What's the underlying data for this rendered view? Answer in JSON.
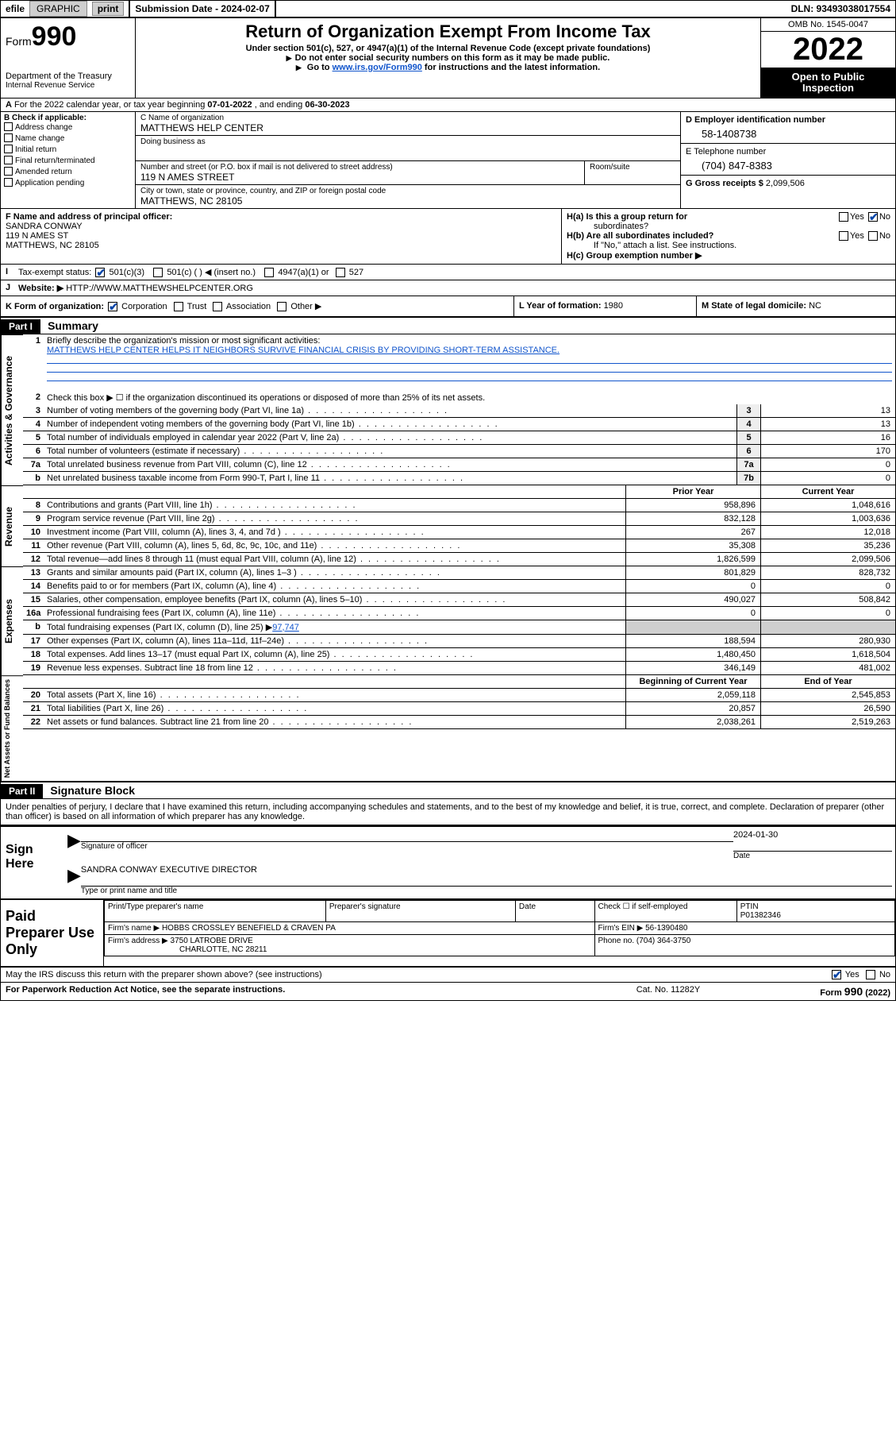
{
  "topbar": {
    "efile_label": "efile",
    "graphic_label": "GRAPHIC",
    "print_label": "print",
    "submission_label": "Submission Date - 2024-02-07",
    "dln_label": "DLN: 93493038017554"
  },
  "header": {
    "form_prefix": "Form",
    "form_number": "990",
    "title": "Return of Organization Exempt From Income Tax",
    "subtitle1": "Under section 501(c), 527, or 4947(a)(1) of the Internal Revenue Code (except private foundations)",
    "subtitle2": "Do not enter social security numbers on this form as it may be made public.",
    "subtitle3_pre": "Go to ",
    "subtitle3_link": "www.irs.gov/Form990",
    "subtitle3_post": " for instructions and the latest information.",
    "dept": "Department of the Treasury",
    "irs": "Internal Revenue Service",
    "omb": "OMB No. 1545-0047",
    "year": "2022",
    "inspection1": "Open to Public",
    "inspection2": "Inspection"
  },
  "rowA": {
    "label": "A",
    "text_a": "For the 2022 calendar year, or tax year beginning ",
    "begin": "07-01-2022",
    "text_b": " , and ending ",
    "end": "06-30-2023"
  },
  "B": {
    "label": "B Check if applicable:",
    "items": [
      "Address change",
      "Name change",
      "Initial return",
      "Final return/terminated",
      "Amended return",
      "Application pending"
    ]
  },
  "C": {
    "name_lbl": "C Name of organization",
    "name": "MATTHEWS HELP CENTER",
    "dba_lbl": "Doing business as",
    "addr_lbl": "Number and street (or P.O. box if mail is not delivered to street address)",
    "room_lbl": "Room/suite",
    "addr": "119 N AMES STREET",
    "city_lbl": "City or town, state or province, country, and ZIP or foreign postal code",
    "city": "MATTHEWS, NC  28105"
  },
  "D": {
    "ein_lbl": "D Employer identification number",
    "ein": "58-1408738",
    "phone_lbl": "E Telephone number",
    "phone": "(704) 847-8383",
    "gross_lbl": "G Gross receipts $ ",
    "gross": "2,099,506"
  },
  "F": {
    "lbl": "F Name and address of principal officer:",
    "name": "SANDRA CONWAY",
    "addr1": "119 N AMES ST",
    "addr2": "MATTHEWS, NC  28105"
  },
  "H": {
    "a_lbl": "H(a)  Is this a group return for",
    "a_sub": "subordinates?",
    "b_lbl": "H(b)  Are all subordinates included?",
    "b_note": "If \"No,\" attach a list. See instructions.",
    "c_lbl": "H(c)  Group exemption number ▶",
    "yes": "Yes",
    "no": "No"
  },
  "I": {
    "lbl": "Tax-exempt status:",
    "opt1": "501(c)(3)",
    "opt2": "501(c) (  ) ◀ (insert no.)",
    "opt3": "4947(a)(1) or",
    "opt4": "527"
  },
  "J": {
    "lbl": "Website: ▶",
    "url": "HTTP://WWW.MATTHEWSHELPCENTER.ORG"
  },
  "K": {
    "lbl": "K Form of organization:",
    "opts": [
      "Corporation",
      "Trust",
      "Association",
      "Other ▶"
    ]
  },
  "L": {
    "lbl": "L Year of formation: ",
    "val": "1980"
  },
  "M": {
    "lbl": "M State of legal domicile: ",
    "val": "NC"
  },
  "part1": {
    "hdr": "Part I",
    "title": "Summary",
    "q1_lbl": "Briefly describe the organization's mission or most significant activities:",
    "q1_text": "MATTHEWS HELP CENTER HELPS IT NEIGHBORS SURVIVE FINANCIAL CRISIS BY PROVIDING SHORT-TERM ASSISTANCE.",
    "q2": "Check this box ▶ ☐  if the organization discontinued its operations or disposed of more than 25% of its net assets.",
    "rows_single": [
      {
        "n": "3",
        "d": "Number of voting members of the governing body (Part VI, line 1a)",
        "c": "3",
        "v": "13"
      },
      {
        "n": "4",
        "d": "Number of independent voting members of the governing body (Part VI, line 1b)",
        "c": "4",
        "v": "13"
      },
      {
        "n": "5",
        "d": "Total number of individuals employed in calendar year 2022 (Part V, line 2a)",
        "c": "5",
        "v": "16"
      },
      {
        "n": "6",
        "d": "Total number of volunteers (estimate if necessary)",
        "c": "6",
        "v": "170"
      },
      {
        "n": "7a",
        "d": "Total unrelated business revenue from Part VIII, column (C), line 12",
        "c": "7a",
        "v": "0"
      },
      {
        "n": "b",
        "d": "Net unrelated business taxable income from Form 990-T, Part I, line 11",
        "c": "7b",
        "v": "0"
      }
    ],
    "col_prior": "Prior Year",
    "col_current": "Current Year",
    "revenue": [
      {
        "n": "8",
        "d": "Contributions and grants (Part VIII, line 1h)",
        "p": "958,896",
        "c": "1,048,616"
      },
      {
        "n": "9",
        "d": "Program service revenue (Part VIII, line 2g)",
        "p": "832,128",
        "c": "1,003,636"
      },
      {
        "n": "10",
        "d": "Investment income (Part VIII, column (A), lines 3, 4, and 7d )",
        "p": "267",
        "c": "12,018"
      },
      {
        "n": "11",
        "d": "Other revenue (Part VIII, column (A), lines 5, 6d, 8c, 9c, 10c, and 11e)",
        "p": "35,308",
        "c": "35,236"
      },
      {
        "n": "12",
        "d": "Total revenue—add lines 8 through 11 (must equal Part VIII, column (A), line 12)",
        "p": "1,826,599",
        "c": "2,099,506"
      }
    ],
    "expenses": [
      {
        "n": "13",
        "d": "Grants and similar amounts paid (Part IX, column (A), lines 1–3 )",
        "p": "801,829",
        "c": "828,732"
      },
      {
        "n": "14",
        "d": "Benefits paid to or for members (Part IX, column (A), line 4)",
        "p": "0",
        "c": "0"
      },
      {
        "n": "15",
        "d": "Salaries, other compensation, employee benefits (Part IX, column (A), lines 5–10)",
        "p": "490,027",
        "c": "508,842"
      },
      {
        "n": "16a",
        "d": "Professional fundraising fees (Part IX, column (A), line 11e)",
        "p": "0",
        "c": "0"
      }
    ],
    "line16b_pre": "Total fundraising expenses (Part IX, column (D), line 25) ▶",
    "line16b_val": "97,747",
    "expenses2": [
      {
        "n": "17",
        "d": "Other expenses (Part IX, column (A), lines 11a–11d, 11f–24e)",
        "p": "188,594",
        "c": "280,930"
      },
      {
        "n": "18",
        "d": "Total expenses. Add lines 13–17 (must equal Part IX, column (A), line 25)",
        "p": "1,480,450",
        "c": "1,618,504"
      },
      {
        "n": "19",
        "d": "Revenue less expenses. Subtract line 18 from line 12",
        "p": "346,149",
        "c": "481,002"
      }
    ],
    "col_begin": "Beginning of Current Year",
    "col_end": "End of Year",
    "netassets": [
      {
        "n": "20",
        "d": "Total assets (Part X, line 16)",
        "p": "2,059,118",
        "c": "2,545,853"
      },
      {
        "n": "21",
        "d": "Total liabilities (Part X, line 26)",
        "p": "20,857",
        "c": "26,590"
      },
      {
        "n": "22",
        "d": "Net assets or fund balances. Subtract line 21 from line 20",
        "p": "2,038,261",
        "c": "2,519,263"
      }
    ],
    "vlabels": {
      "gov": "Activities & Governance",
      "rev": "Revenue",
      "exp": "Expenses",
      "net": "Net Assets or Fund Balances"
    }
  },
  "part2": {
    "hdr": "Part II",
    "title": "Signature Block",
    "penalty": "Under penalties of perjury, I declare that I have examined this return, including accompanying schedules and statements, and to the best of my knowledge and belief, it is true, correct, and complete. Declaration of preparer (other than officer) is based on all information of which preparer has any knowledge.",
    "sign_here": "Sign Here",
    "sig_officer_lbl": "Signature of officer",
    "date_lbl": "Date",
    "sig_date": "2024-01-30",
    "officer_name": "SANDRA CONWAY EXECUTIVE DIRECTOR",
    "officer_lbl": "Type or print name and title",
    "paid_lbl": "Paid Preparer Use Only",
    "prep_name_lbl": "Print/Type preparer's name",
    "prep_sig_lbl": "Preparer's signature",
    "prep_date_lbl": "Date",
    "check_self": "Check ☐ if self-employed",
    "ptin_lbl": "PTIN",
    "ptin": "P01382346",
    "firm_name_lbl": "Firm's name    ▶",
    "firm_name": "HOBBS CROSSLEY BENEFIELD & CRAVEN PA",
    "firm_ein_lbl": "Firm's EIN ▶",
    "firm_ein": "56-1390480",
    "firm_addr_lbl": "Firm's address ▶",
    "firm_addr1": "3750 LATROBE DRIVE",
    "firm_addr2": "CHARLOTTE, NC  28211",
    "firm_phone_lbl": "Phone no.",
    "firm_phone": "(704) 364-3750",
    "discuss": "May the IRS discuss this return with the preparer shown above? (see instructions)",
    "paperwork": "For Paperwork Reduction Act Notice, see the separate instructions.",
    "catno": "Cat. No. 11282Y",
    "formver": "Form 990 (2022)"
  }
}
